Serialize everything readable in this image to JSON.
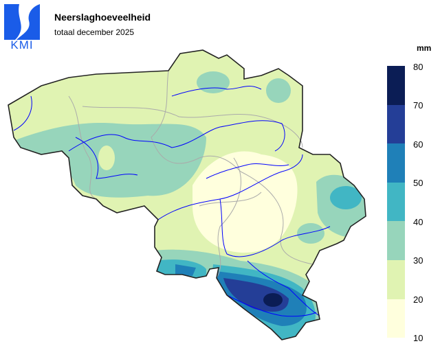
{
  "header": {
    "logo_text": "KMI",
    "title": "Neerslaghoeveelheid",
    "subtitle": "totaal december 2025"
  },
  "legend": {
    "unit": "mm",
    "ticks": [
      "80",
      "70",
      "60",
      "50",
      "40",
      "30",
      "20",
      "10"
    ],
    "bands": [
      {
        "range": "70-80",
        "color": "#0b1d55"
      },
      {
        "range": "60-70",
        "color": "#243e97"
      },
      {
        "range": "50-60",
        "color": "#1f80b8"
      },
      {
        "range": "40-50",
        "color": "#41b6c4"
      },
      {
        "range": "30-40",
        "color": "#97d5bb"
      },
      {
        "range": "20-30",
        "color": "#e0f3b2"
      },
      {
        "range": "10-20",
        "color": "#ffffdd"
      }
    ]
  },
  "map": {
    "region": "Belgium",
    "base_color": "#e0f3b2",
    "river_color": "#0000ff",
    "border_color": "#aaaaaa"
  }
}
